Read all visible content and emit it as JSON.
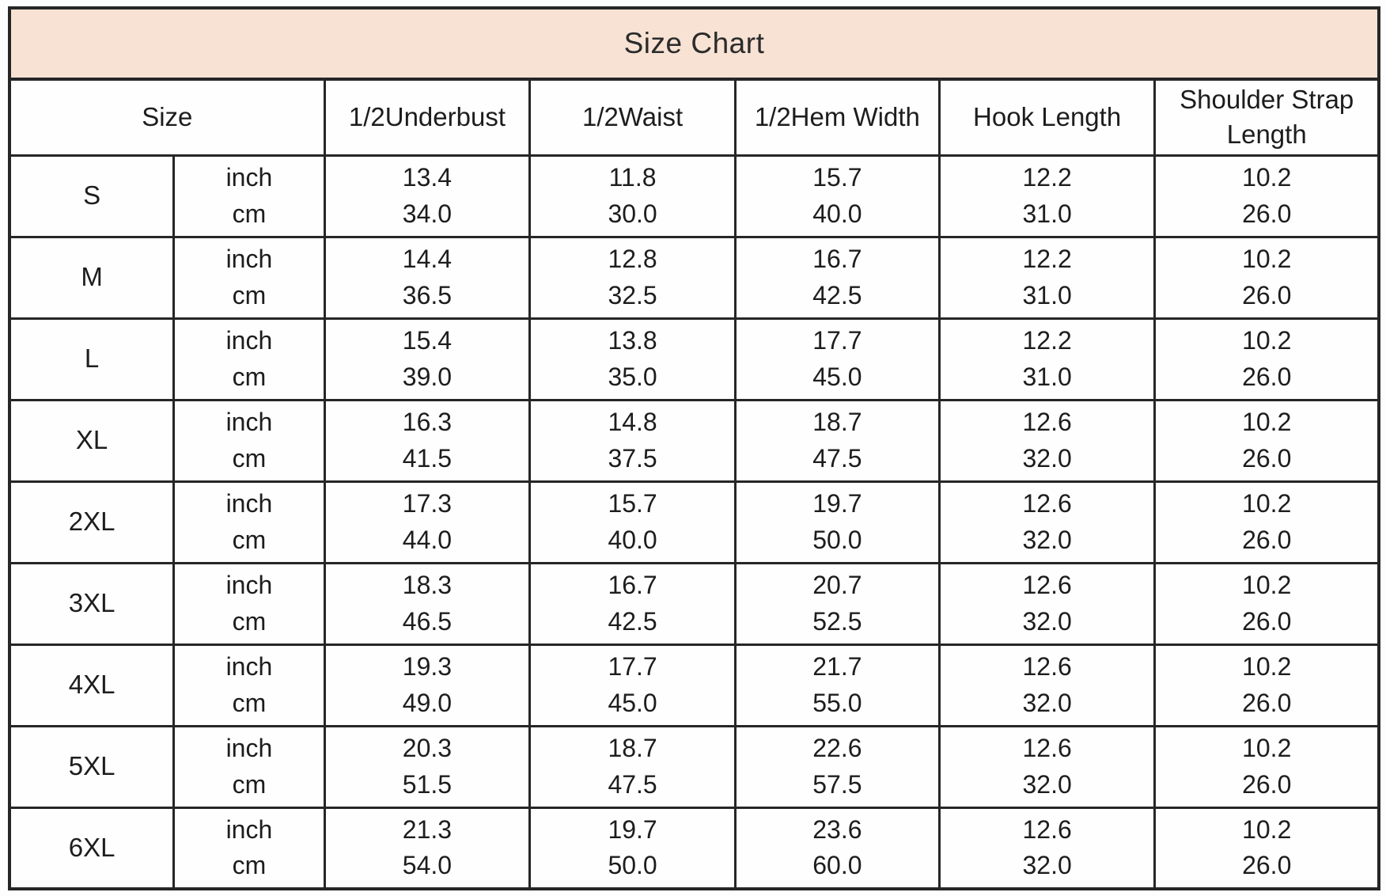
{
  "colors": {
    "header_bg": "#f7e2d4",
    "border": "#262626",
    "text": "#1d1d1d",
    "page_bg": "#fdfdfd"
  },
  "chart_data": {
    "type": "table",
    "title": "Size Chart",
    "columns": [
      "Size",
      "1/2Underbust",
      "1/2Waist",
      "1/2Hem Width",
      "Hook Length",
      "Shoulder Strap Length"
    ],
    "units": [
      "inch",
      "cm"
    ],
    "rows": [
      {
        "size": "S",
        "inch": [
          "13.4",
          "11.8",
          "15.7",
          "12.2",
          "10.2"
        ],
        "cm": [
          "34.0",
          "30.0",
          "40.0",
          "31.0",
          "26.0"
        ]
      },
      {
        "size": "M",
        "inch": [
          "14.4",
          "12.8",
          "16.7",
          "12.2",
          "10.2"
        ],
        "cm": [
          "36.5",
          "32.5",
          "42.5",
          "31.0",
          "26.0"
        ]
      },
      {
        "size": "L",
        "inch": [
          "15.4",
          "13.8",
          "17.7",
          "12.2",
          "10.2"
        ],
        "cm": [
          "39.0",
          "35.0",
          "45.0",
          "31.0",
          "26.0"
        ]
      },
      {
        "size": "XL",
        "inch": [
          "16.3",
          "14.8",
          "18.7",
          "12.6",
          "10.2"
        ],
        "cm": [
          "41.5",
          "37.5",
          "47.5",
          "32.0",
          "26.0"
        ]
      },
      {
        "size": "2XL",
        "inch": [
          "17.3",
          "15.7",
          "19.7",
          "12.6",
          "10.2"
        ],
        "cm": [
          "44.0",
          "40.0",
          "50.0",
          "32.0",
          "26.0"
        ]
      },
      {
        "size": "3XL",
        "inch": [
          "18.3",
          "16.7",
          "20.7",
          "12.6",
          "10.2"
        ],
        "cm": [
          "46.5",
          "42.5",
          "52.5",
          "32.0",
          "26.0"
        ]
      },
      {
        "size": "4XL",
        "inch": [
          "19.3",
          "17.7",
          "21.7",
          "12.6",
          "10.2"
        ],
        "cm": [
          "49.0",
          "45.0",
          "55.0",
          "32.0",
          "26.0"
        ]
      },
      {
        "size": "5XL",
        "inch": [
          "20.3",
          "18.7",
          "22.6",
          "12.6",
          "10.2"
        ],
        "cm": [
          "51.5",
          "47.5",
          "57.5",
          "32.0",
          "26.0"
        ]
      },
      {
        "size": "6XL",
        "inch": [
          "21.3",
          "19.7",
          "23.6",
          "12.6",
          "10.2"
        ],
        "cm": [
          "54.0",
          "50.0",
          "60.0",
          "32.0",
          "26.0"
        ]
      }
    ]
  }
}
